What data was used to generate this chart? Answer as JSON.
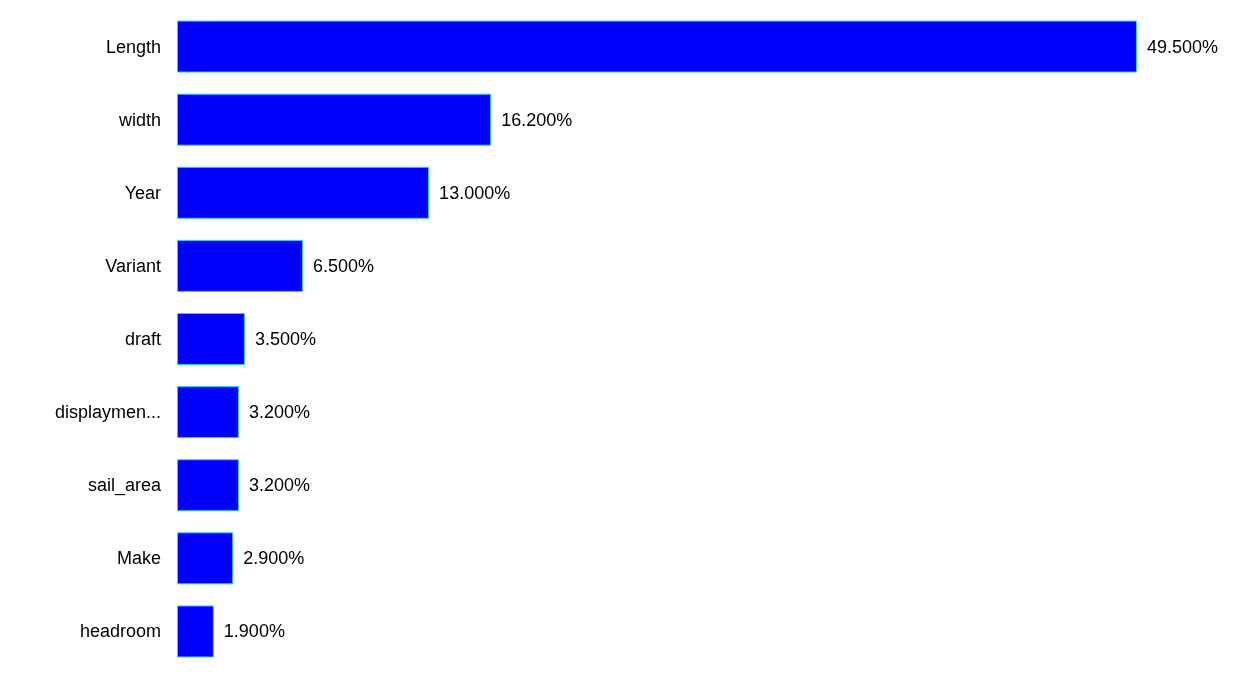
{
  "chart_data": {
    "type": "bar",
    "orientation": "horizontal",
    "categories": [
      "Length",
      "width",
      "Year",
      "Variant",
      "draft",
      "displaymen...",
      "sail_area",
      "Make",
      "headroom"
    ],
    "values": [
      49.5,
      16.2,
      13.0,
      6.5,
      3.5,
      3.2,
      3.2,
      2.9,
      1.9
    ],
    "value_labels": [
      "49.500%",
      "16.200%",
      "13.000%",
      "6.500%",
      "3.500%",
      "3.200%",
      "3.200%",
      "2.900%",
      "1.900%"
    ],
    "color": "#0000ff"
  }
}
